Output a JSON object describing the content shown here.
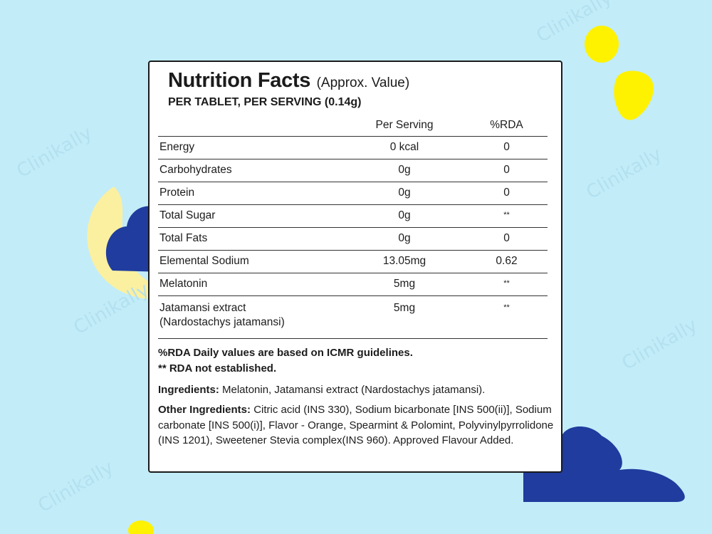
{
  "watermark": "Clinikally",
  "colors": {
    "background": "#c2ecf8",
    "cloud": "#1f3c9e",
    "moon": "#fbf0a0",
    "dot": "#fff200",
    "card": "#ffffff"
  },
  "label": {
    "title": "Nutrition Facts",
    "approx": "(Approx. Value)",
    "serving": "PER TABLET, PER SERVING (0.14g)"
  },
  "table": {
    "headers": [
      "",
      "Per Serving",
      "%RDA"
    ],
    "rows": [
      {
        "name": "Energy",
        "per_serving": "0 kcal",
        "rda": "0"
      },
      {
        "name": "Carbohydrates",
        "per_serving": "0g",
        "rda": "0"
      },
      {
        "name": "Protein",
        "per_serving": "0g",
        "rda": "0"
      },
      {
        "name": "Total Sugar",
        "per_serving": "0g",
        "rda": "**"
      },
      {
        "name": "Total Fats",
        "per_serving": "0g",
        "rda": "0"
      },
      {
        "name": "Elemental Sodium",
        "per_serving": "13.05mg",
        "rda": "0.62"
      },
      {
        "name": "Melatonin",
        "per_serving": "5mg",
        "rda": "**"
      },
      {
        "name": "Jatamansi extract",
        "name_sub": "(Nardostachys jatamansi)",
        "per_serving": "5mg",
        "rda": "**"
      }
    ]
  },
  "notes": {
    "rda_note": "%RDA Daily values are based on ICMR guidelines.",
    "not_established": "** RDA not established."
  },
  "ingredients": {
    "label": "Ingredients:",
    "text": "Melatonin, Jatamansi extract (Nardostachys jatamansi)."
  },
  "other_ingredients": {
    "label": "Other Ingredients:",
    "text": "Citric acid (INS 330), Sodium bicarbonate [INS 500(ii)], Sodium carbonate [INS 500(i)], Flavor - Orange, Spearmint & Polomint, Polyvinylpyrrolidone (INS 1201), Sweetener Stevia complex(INS 960). Approved Flavour Added."
  }
}
